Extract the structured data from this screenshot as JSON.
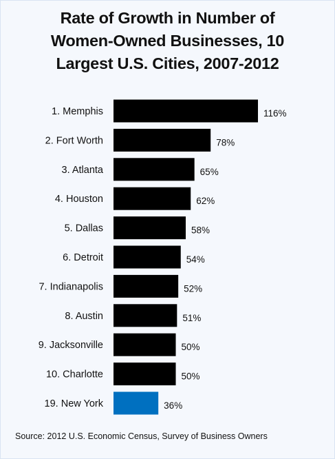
{
  "title_lines": [
    "Rate of Growth in Number of",
    "Women-Owned Businesses, 10",
    "Largest U.S. Cities, 2007-2012"
  ],
  "source": "Source: 2012 U.S. Economic Census, Survey of Business Owners",
  "colors": {
    "bar": "#000000",
    "highlight": "#0070c0",
    "background": "#f5f8fd",
    "border": "#d9e4f2"
  },
  "chart_data": {
    "type": "bar",
    "orientation": "horizontal",
    "title": "Rate of Growth in Number of Women-Owned Businesses, 10 Largest U.S. Cities, 2007-2012",
    "categories": [
      "1. Memphis",
      "2. Fort Worth",
      "3. Atlanta",
      "4. Houston",
      "5. Dallas",
      "6. Detroit",
      "7. Indianapolis",
      "8. Austin",
      "9. Jacksonville",
      "10. Charlotte",
      "19. New York"
    ],
    "values": [
      116,
      78,
      65,
      62,
      58,
      54,
      52,
      51,
      50,
      50,
      36
    ],
    "data_labels": [
      "116%",
      "78%",
      "65%",
      "62%",
      "58%",
      "54%",
      "52%",
      "51%",
      "50%",
      "50%",
      "36%"
    ],
    "highlighted_category": "19. New York",
    "unit": "%",
    "xlim": [
      0,
      116
    ],
    "grid": false,
    "legend": "none",
    "xlabel": "",
    "ylabel": ""
  }
}
